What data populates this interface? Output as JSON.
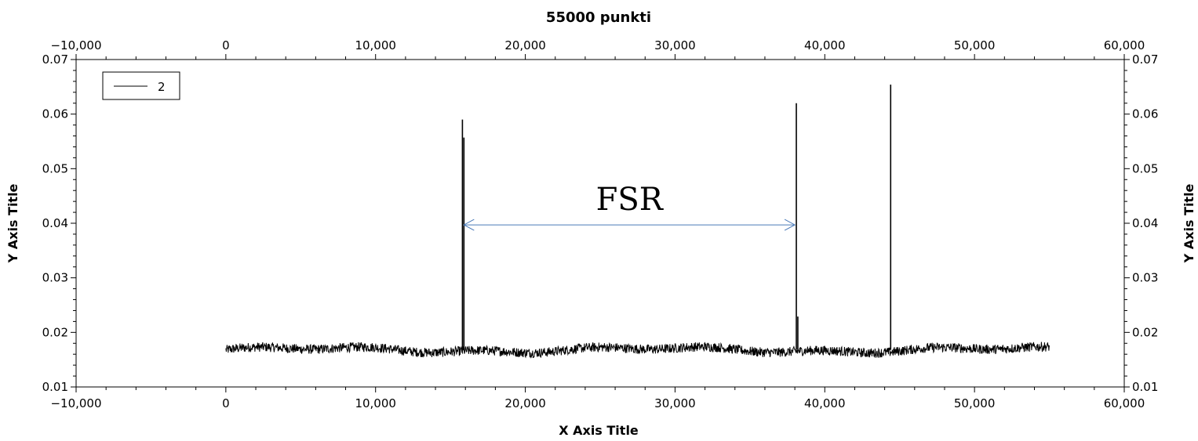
{
  "chart_data": {
    "type": "line",
    "title": "55000 punkti",
    "xlabel": "X Axis Title",
    "ylabel": "Y Axis Title",
    "ylabel_right": "Y Axis Title",
    "xlim": [
      -10000,
      60000
    ],
    "ylim": [
      0.01,
      0.07
    ],
    "x_ticks": [
      -10000,
      0,
      10000,
      20000,
      30000,
      40000,
      50000,
      60000
    ],
    "x_tick_labels": [
      "−10,000",
      "0",
      "10,000",
      "20,000",
      "30,000",
      "40,000",
      "50,000",
      "60,000"
    ],
    "y_ticks": [
      0.01,
      0.02,
      0.03,
      0.04,
      0.05,
      0.06,
      0.07
    ],
    "y_tick_labels": [
      "0.01",
      "0.02",
      "0.03",
      "0.04",
      "0.05",
      "0.06",
      "0.07"
    ],
    "grid": false,
    "legend_position": "top-left",
    "series": [
      {
        "name": "2",
        "color": "#000000",
        "baseline": {
          "x_range": [
            0,
            55000
          ],
          "mean": 0.0168,
          "noise_band": [
            0.0158,
            0.018
          ]
        },
        "peaks": [
          {
            "x": 15800,
            "y": 0.059
          },
          {
            "x": 15900,
            "y": 0.0557
          },
          {
            "x": 38100,
            "y": 0.062
          },
          {
            "x": 38200,
            "y": 0.0229
          },
          {
            "x": 44400,
            "y": 0.0654
          }
        ]
      }
    ],
    "annotations": [
      {
        "text": "FSR",
        "type": "double-arrow",
        "x_start": 15900,
        "x_end": 38000,
        "y": 0.0397,
        "color": "#4a7ab8"
      }
    ]
  }
}
